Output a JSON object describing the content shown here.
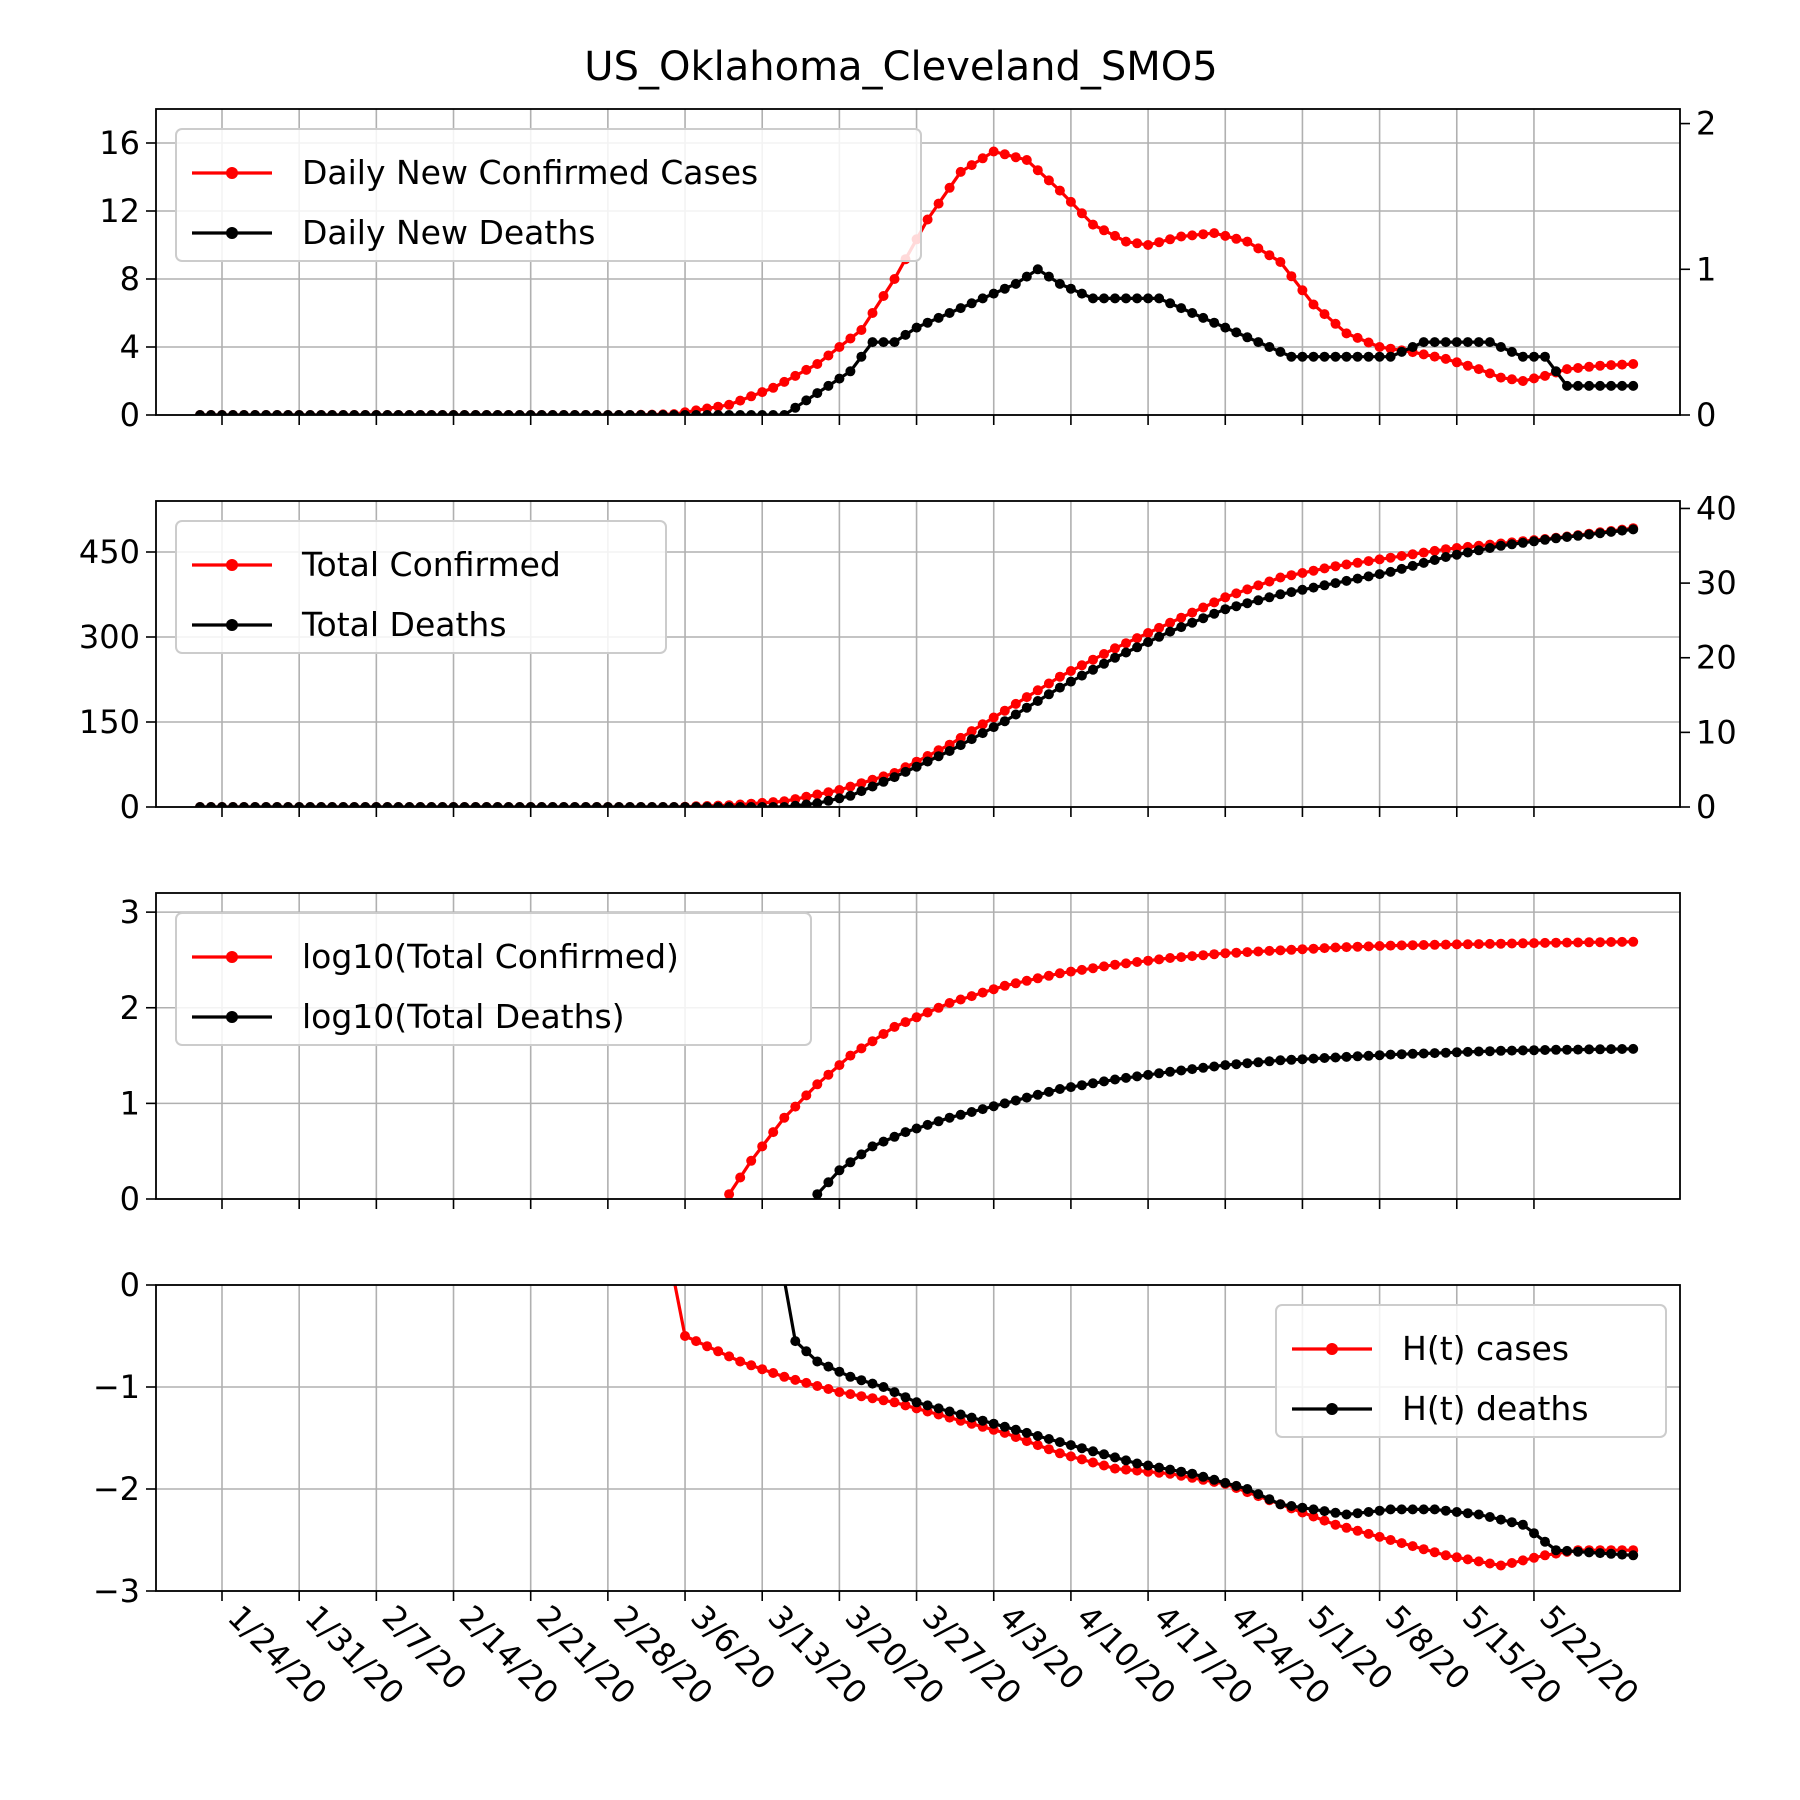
{
  "figure": {
    "title": "US_Oklahoma_Cleveland_SMO5",
    "x_tick_labels": [
      "1/24/20",
      "1/31/20",
      "2/7/20",
      "2/14/20",
      "2/21/20",
      "2/28/20",
      "3/6/20",
      "3/13/20",
      "3/20/20",
      "3/27/20",
      "4/3/20",
      "4/10/20",
      "4/17/20",
      "4/24/20",
      "5/1/20",
      "5/8/20",
      "5/15/20",
      "5/22/20"
    ],
    "colors": {
      "cases": "#ff0000",
      "deaths": "#000000",
      "grid": "#b0b0b0"
    }
  },
  "chart_data": [
    {
      "type": "line",
      "x_start": "1/22/20",
      "x_end": "5/26/20",
      "grid": true,
      "legend": "upper-left",
      "left_axis": {
        "ylim": [
          0,
          18
        ],
        "ticks": [
          0,
          4,
          8,
          12,
          16
        ]
      },
      "right_axis": {
        "ylim": [
          0,
          2.1
        ],
        "ticks": [
          0,
          1,
          2
        ]
      },
      "series": [
        {
          "name": "Daily New Confirmed Cases",
          "axis": "left",
          "color": "#ff0000",
          "keypoints": [
            [
              "1/22/20",
              0
            ],
            [
              "3/1/20",
              0
            ],
            [
              "3/5/20",
              0.05
            ],
            [
              "3/10/20",
              0.6
            ],
            [
              "3/14/20",
              1.6
            ],
            [
              "3/18/20",
              3
            ],
            [
              "3/22/20",
              5
            ],
            [
              "3/25/20",
              8
            ],
            [
              "3/28/20",
              11.5
            ],
            [
              "3/31/20",
              14.3
            ],
            [
              "4/3/20",
              15.5
            ],
            [
              "4/6/20",
              15
            ],
            [
              "4/9/20",
              13.2
            ],
            [
              "4/12/20",
              11.2
            ],
            [
              "4/15/20",
              10.2
            ],
            [
              "4/17/20",
              10
            ],
            [
              "4/20/20",
              10.5
            ],
            [
              "4/23/20",
              10.7
            ],
            [
              "4/26/20",
              10.2
            ],
            [
              "4/29/20",
              9
            ],
            [
              "5/2/20",
              6.5
            ],
            [
              "5/5/20",
              4.8
            ],
            [
              "5/8/20",
              4
            ],
            [
              "5/11/20",
              3.7
            ],
            [
              "5/14/20",
              3.3
            ],
            [
              "5/17/20",
              2.7
            ],
            [
              "5/19/20",
              2.2
            ],
            [
              "5/21/20",
              2
            ],
            [
              "5/23/20",
              2.3
            ],
            [
              "5/25/20",
              2.7
            ],
            [
              "5/28/20",
              2.9
            ],
            [
              "5/31/20",
              3
            ]
          ]
        },
        {
          "name": "Daily New Deaths",
          "axis": "right",
          "color": "#000000",
          "keypoints": [
            [
              "1/22/20",
              0
            ],
            [
              "3/15/20",
              0
            ],
            [
              "3/17/20",
              0.1
            ],
            [
              "3/19/20",
              0.2
            ],
            [
              "3/21/20",
              0.3
            ],
            [
              "3/23/20",
              0.5
            ],
            [
              "3/25/20",
              0.5
            ],
            [
              "3/27/20",
              0.6
            ],
            [
              "3/30/20",
              0.7
            ],
            [
              "4/2/20",
              0.8
            ],
            [
              "4/5/20",
              0.9
            ],
            [
              "4/7/20",
              1
            ],
            [
              "4/9/20",
              0.9
            ],
            [
              "4/12/20",
              0.8
            ],
            [
              "4/15/20",
              0.8
            ],
            [
              "4/18/20",
              0.8
            ],
            [
              "4/21/20",
              0.7
            ],
            [
              "4/24/20",
              0.6
            ],
            [
              "4/27/20",
              0.5
            ],
            [
              "4/30/20",
              0.4
            ],
            [
              "5/3/20",
              0.4
            ],
            [
              "5/6/20",
              0.4
            ],
            [
              "5/9/20",
              0.4
            ],
            [
              "5/12/20",
              0.5
            ],
            [
              "5/15/20",
              0.5
            ],
            [
              "5/18/20",
              0.5
            ],
            [
              "5/21/20",
              0.4
            ],
            [
              "5/23/20",
              0.4
            ],
            [
              "5/25/20",
              0.2
            ],
            [
              "5/31/20",
              0.2
            ]
          ]
        }
      ]
    },
    {
      "type": "line",
      "x_start": "1/22/20",
      "x_end": "5/26/20",
      "grid": true,
      "legend": "upper-left",
      "left_axis": {
        "ylim": [
          0,
          540
        ],
        "ticks": [
          0,
          150,
          300,
          450
        ]
      },
      "right_axis": {
        "ylim": [
          0,
          41
        ],
        "ticks": [
          0,
          10,
          20,
          30,
          40
        ]
      },
      "series": [
        {
          "name": "Total Confirmed",
          "axis": "left",
          "color": "#ff0000",
          "keypoints": [
            [
              "1/22/20",
              0
            ],
            [
              "3/5/20",
              0
            ],
            [
              "3/10/20",
              3
            ],
            [
              "3/15/20",
              10
            ],
            [
              "3/20/20",
              30
            ],
            [
              "3/25/20",
              60
            ],
            [
              "3/30/20",
              110
            ],
            [
              "4/4/20",
              170
            ],
            [
              "4/9/20",
              230
            ],
            [
              "4/14/20",
              280
            ],
            [
              "4/19/20",
              325
            ],
            [
              "4/24/20",
              370
            ],
            [
              "4/29/20",
              405
            ],
            [
              "5/4/20",
              425
            ],
            [
              "5/9/20",
              440
            ],
            [
              "5/14/20",
              455
            ],
            [
              "5/19/20",
              465
            ],
            [
              "5/24/20",
              475
            ],
            [
              "5/31/20",
              492
            ]
          ]
        },
        {
          "name": "Total Deaths",
          "axis": "right",
          "color": "#000000",
          "keypoints": [
            [
              "1/22/20",
              0
            ],
            [
              "3/15/20",
              0
            ],
            [
              "3/18/20",
              0.5
            ],
            [
              "3/21/20",
              1.5
            ],
            [
              "3/25/20",
              4
            ],
            [
              "3/30/20",
              7.5
            ],
            [
              "4/4/20",
              11.5
            ],
            [
              "4/9/20",
              16
            ],
            [
              "4/14/20",
              20
            ],
            [
              "4/19/20",
              23.5
            ],
            [
              "4/24/20",
              26.5
            ],
            [
              "4/29/20",
              28.5
            ],
            [
              "5/4/20",
              30
            ],
            [
              "5/9/20",
              31.5
            ],
            [
              "5/14/20",
              33.5
            ],
            [
              "5/19/20",
              35
            ],
            [
              "5/24/20",
              36
            ],
            [
              "5/31/20",
              37.2
            ]
          ]
        }
      ]
    },
    {
      "type": "line",
      "x_start": "1/22/20",
      "x_end": "5/26/20",
      "grid": true,
      "legend": "upper-left",
      "left_axis": {
        "ylim": [
          0,
          3.2
        ],
        "ticks": [
          0,
          1,
          2,
          3
        ]
      },
      "series": [
        {
          "name": "log10(Total Confirmed)",
          "color": "#ff0000",
          "keypoints": [
            [
              "3/10/20",
              0.05
            ],
            [
              "3/12/20",
              0.4
            ],
            [
              "3/15/20",
              0.85
            ],
            [
              "3/18/20",
              1.2
            ],
            [
              "3/21/20",
              1.5
            ],
            [
              "3/25/20",
              1.8
            ],
            [
              "3/30/20",
              2.05
            ],
            [
              "4/4/20",
              2.23
            ],
            [
              "4/9/20",
              2.36
            ],
            [
              "4/14/20",
              2.45
            ],
            [
              "4/19/20",
              2.52
            ],
            [
              "4/24/20",
              2.57
            ],
            [
              "4/29/20",
              2.6
            ],
            [
              "5/4/20",
              2.63
            ],
            [
              "5/9/20",
              2.65
            ],
            [
              "5/14/20",
              2.66
            ],
            [
              "5/19/20",
              2.67
            ],
            [
              "5/24/20",
              2.68
            ],
            [
              "5/31/20",
              2.69
            ]
          ]
        },
        {
          "name": "log10(Total Deaths)",
          "color": "#000000",
          "keypoints": [
            [
              "3/18/20",
              0.05
            ],
            [
              "3/20/20",
              0.3
            ],
            [
              "3/23/20",
              0.55
            ],
            [
              "3/26/20",
              0.7
            ],
            [
              "3/30/20",
              0.85
            ],
            [
              "4/4/20",
              1.0
            ],
            [
              "4/9/20",
              1.15
            ],
            [
              "4/14/20",
              1.25
            ],
            [
              "4/19/20",
              1.33
            ],
            [
              "4/24/20",
              1.4
            ],
            [
              "4/29/20",
              1.45
            ],
            [
              "5/4/20",
              1.48
            ],
            [
              "5/9/20",
              1.51
            ],
            [
              "5/14/20",
              1.53
            ],
            [
              "5/19/20",
              1.55
            ],
            [
              "5/24/20",
              1.56
            ],
            [
              "5/31/20",
              1.57
            ]
          ]
        }
      ]
    },
    {
      "type": "line",
      "x_start": "1/22/20",
      "x_end": "5/26/20",
      "grid": true,
      "legend": "upper-right",
      "left_axis": {
        "ylim": [
          -3,
          0
        ],
        "ticks": [
          -3,
          -2,
          -1,
          0
        ]
      },
      "series": [
        {
          "name": "H(t) cases",
          "color": "#ff0000",
          "keypoints": [
            [
              "3/5/20",
              0.05
            ],
            [
              "3/6/20",
              -0.5
            ],
            [
              "3/8/20",
              -0.6
            ],
            [
              "3/11/20",
              -0.75
            ],
            [
              "3/15/20",
              -0.9
            ],
            [
              "3/20/20",
              -1.05
            ],
            [
              "3/25/20",
              -1.15
            ],
            [
              "3/30/20",
              -1.3
            ],
            [
              "4/4/20",
              -1.45
            ],
            [
              "4/9/20",
              -1.65
            ],
            [
              "4/14/20",
              -1.8
            ],
            [
              "4/19/20",
              -1.85
            ],
            [
              "4/24/20",
              -1.95
            ],
            [
              "4/29/20",
              -2.15
            ],
            [
              "5/4/20",
              -2.35
            ],
            [
              "5/9/20",
              -2.5
            ],
            [
              "5/14/20",
              -2.65
            ],
            [
              "5/19/20",
              -2.75
            ],
            [
              "5/23/20",
              -2.65
            ],
            [
              "5/26/20",
              -2.6
            ],
            [
              "5/31/20",
              -2.6
            ]
          ]
        },
        {
          "name": "H(t) deaths",
          "color": "#000000",
          "keypoints": [
            [
              "3/15/20",
              0.05
            ],
            [
              "3/16/20",
              -0.55
            ],
            [
              "3/18/20",
              -0.75
            ],
            [
              "3/21/20",
              -0.9
            ],
            [
              "3/24/20",
              -1.0
            ],
            [
              "3/27/20",
              -1.15
            ],
            [
              "4/1/20",
              -1.3
            ],
            [
              "4/6/20",
              -1.45
            ],
            [
              "4/11/20",
              -1.6
            ],
            [
              "4/16/20",
              -1.75
            ],
            [
              "4/21/20",
              -1.85
            ],
            [
              "4/26/20",
              -2.0
            ],
            [
              "4/29/20",
              -2.15
            ],
            [
              "5/2/20",
              -2.2
            ],
            [
              "5/5/20",
              -2.25
            ],
            [
              "5/9/20",
              -2.2
            ],
            [
              "5/13/20",
              -2.2
            ],
            [
              "5/17/20",
              -2.25
            ],
            [
              "5/21/20",
              -2.35
            ],
            [
              "5/24/20",
              -2.6
            ],
            [
              "5/31/20",
              -2.65
            ]
          ]
        }
      ]
    }
  ]
}
